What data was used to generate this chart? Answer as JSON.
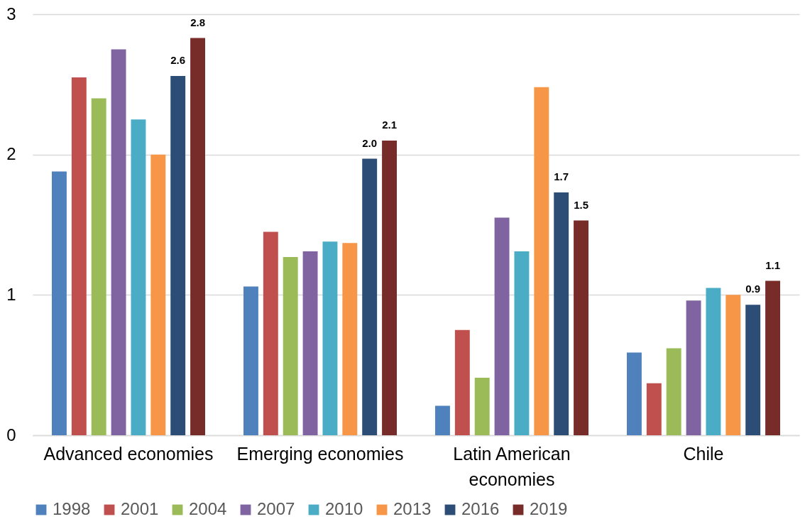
{
  "chart_data": {
    "type": "bar",
    "categories": [
      "Advanced economies",
      "Emerging economies",
      "Latin American economies",
      "Chile"
    ],
    "series": [
      {
        "name": "1998",
        "color": "#4f81bd",
        "values": [
          1.88,
          1.06,
          0.21,
          0.59
        ]
      },
      {
        "name": "2001",
        "color": "#c0504d",
        "values": [
          2.55,
          1.45,
          0.75,
          0.37
        ]
      },
      {
        "name": "2004",
        "color": "#9bbb59",
        "values": [
          2.4,
          1.27,
          0.41,
          0.62
        ]
      },
      {
        "name": "2007",
        "color": "#8064a2",
        "values": [
          2.75,
          1.31,
          1.55,
          0.96
        ]
      },
      {
        "name": "2010",
        "color": "#4bacc6",
        "values": [
          2.25,
          1.38,
          1.31,
          1.05
        ]
      },
      {
        "name": "2013",
        "color": "#f79646",
        "values": [
          2.0,
          1.37,
          2.48,
          1.0
        ]
      },
      {
        "name": "2016",
        "color": "#2c4d75",
        "values": [
          2.56,
          1.97,
          1.73,
          0.93
        ],
        "value_labels": [
          "2.6",
          "2.0",
          "1.7",
          "0.9"
        ]
      },
      {
        "name": "2019",
        "color": "#772c2a",
        "values": [
          2.83,
          2.1,
          1.53,
          1.1
        ],
        "value_labels": [
          "2.8",
          "2.1",
          "1.5",
          "1.1"
        ]
      }
    ],
    "ylim": [
      0,
      3
    ],
    "yticks": [
      0,
      1,
      2,
      3
    ],
    "grid": "y",
    "legend": "bottom"
  }
}
